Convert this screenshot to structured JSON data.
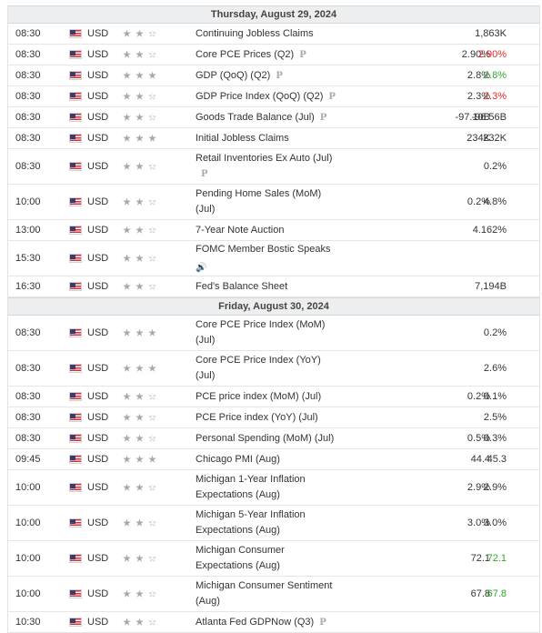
{
  "days": [
    {
      "header": "Thursday, August 29, 2024",
      "events": [
        {
          "time": "08:30",
          "currency": "USD",
          "importance": 2,
          "event": "Continuing Jobless Claims",
          "actual": "",
          "previous": "1,863K",
          "prev_color": "",
          "p": false,
          "speech": false,
          "tall": false
        },
        {
          "time": "08:30",
          "currency": "USD",
          "importance": 2,
          "event": "Core PCE Prices (Q2)",
          "actual": "2.90%",
          "previous": "2.90%",
          "prev_color": "red",
          "p": true,
          "speech": false,
          "tall": false
        },
        {
          "time": "08:30",
          "currency": "USD",
          "importance": 3,
          "event": "GDP (QoQ) (Q2)",
          "actual": "2.8%",
          "previous": "2.8%",
          "prev_color": "green",
          "p": true,
          "speech": false,
          "tall": false
        },
        {
          "time": "08:30",
          "currency": "USD",
          "importance": 2,
          "event": "GDP Price Index (QoQ) (Q2)",
          "actual": "2.3%",
          "previous": "2.3%",
          "prev_color": "red",
          "p": true,
          "speech": false,
          "tall": false
        },
        {
          "time": "08:30",
          "currency": "USD",
          "importance": 2,
          "event": "Goods Trade Balance (Jul)",
          "actual": "-97.10B",
          "previous": "-96.56B",
          "prev_color": "",
          "p": true,
          "speech": false,
          "tall": false
        },
        {
          "time": "08:30",
          "currency": "USD",
          "importance": 3,
          "event": "Initial Jobless Claims",
          "actual": "234K",
          "previous": "232K",
          "prev_color": "",
          "p": false,
          "speech": false,
          "tall": false
        },
        {
          "time": "08:30",
          "currency": "USD",
          "importance": 2,
          "event": "Retail Inventories Ex Auto (Jul)",
          "actual": "",
          "previous": "0.2%",
          "prev_color": "",
          "p": true,
          "speech": false,
          "tall": true
        },
        {
          "time": "10:00",
          "currency": "USD",
          "importance": 2,
          "event": "Pending Home Sales (MoM) (Jul)",
          "actual": "0.2%",
          "previous": "4.8%",
          "prev_color": "",
          "p": false,
          "speech": false,
          "tall": true
        },
        {
          "time": "13:00",
          "currency": "USD",
          "importance": 2,
          "event": "7-Year Note Auction",
          "actual": "",
          "previous": "4.162%",
          "prev_color": "",
          "p": false,
          "speech": false,
          "tall": false
        },
        {
          "time": "15:30",
          "currency": "USD",
          "importance": 2,
          "event": "FOMC Member Bostic Speaks",
          "actual": "",
          "previous": "",
          "prev_color": "",
          "p": false,
          "speech": true,
          "tall": true
        },
        {
          "time": "16:30",
          "currency": "USD",
          "importance": 2,
          "event": "Fed's Balance Sheet",
          "actual": "",
          "previous": "7,194B",
          "prev_color": "",
          "p": false,
          "speech": false,
          "tall": false
        }
      ]
    },
    {
      "header": "Friday, August 30, 2024",
      "events": [
        {
          "time": "08:30",
          "currency": "USD",
          "importance": 3,
          "event": "Core PCE Price Index (MoM) (Jul)",
          "actual": "",
          "previous": "0.2%",
          "prev_color": "",
          "p": false,
          "speech": false,
          "tall": true
        },
        {
          "time": "08:30",
          "currency": "USD",
          "importance": 3,
          "event": "Core PCE Price Index (YoY) (Jul)",
          "actual": "",
          "previous": "2.6%",
          "prev_color": "",
          "p": false,
          "speech": false,
          "tall": true
        },
        {
          "time": "08:30",
          "currency": "USD",
          "importance": 2,
          "event": "PCE price index (MoM) (Jul)",
          "actual": "0.2%",
          "previous": "0.1%",
          "prev_color": "",
          "p": false,
          "speech": false,
          "tall": false
        },
        {
          "time": "08:30",
          "currency": "USD",
          "importance": 2,
          "event": "PCE Price index (YoY) (Jul)",
          "actual": "",
          "previous": "2.5%",
          "prev_color": "",
          "p": false,
          "speech": false,
          "tall": false
        },
        {
          "time": "08:30",
          "currency": "USD",
          "importance": 2,
          "event": "Personal Spending (MoM) (Jul)",
          "actual": "0.5%",
          "previous": "0.3%",
          "prev_color": "",
          "p": false,
          "speech": false,
          "tall": false
        },
        {
          "time": "09:45",
          "currency": "USD",
          "importance": 3,
          "event": "Chicago PMI (Aug)",
          "actual": "44.4",
          "previous": "45.3",
          "prev_color": "",
          "p": false,
          "speech": false,
          "tall": false
        },
        {
          "time": "10:00",
          "currency": "USD",
          "importance": 2,
          "event": "Michigan 1-Year Inflation Expectations (Aug)",
          "actual": "2.9%",
          "previous": "2.9%",
          "prev_color": "",
          "p": false,
          "speech": false,
          "tall": true
        },
        {
          "time": "10:00",
          "currency": "USD",
          "importance": 2,
          "event": "Michigan 5-Year Inflation Expectations (Aug)",
          "actual": "3.0%",
          "previous": "3.0%",
          "prev_color": "",
          "p": false,
          "speech": false,
          "tall": true
        },
        {
          "time": "10:00",
          "currency": "USD",
          "importance": 2,
          "event": "Michigan Consumer Expectations (Aug)",
          "actual": "72.1",
          "previous": "72.1",
          "prev_color": "green",
          "p": false,
          "speech": false,
          "tall": true
        },
        {
          "time": "10:00",
          "currency": "USD",
          "importance": 2,
          "event": "Michigan Consumer Sentiment (Aug)",
          "actual": "67.8",
          "previous": "67.8",
          "prev_color": "green",
          "p": false,
          "speech": false,
          "tall": true
        },
        {
          "time": "10:30",
          "currency": "USD",
          "importance": 2,
          "event": "Atlanta Fed GDPNow (Q3)",
          "actual": "",
          "previous": "",
          "prev_color": "",
          "p": true,
          "speech": false,
          "tall": false
        }
      ]
    }
  ],
  "icons": {
    "flag": "us-flag-icon",
    "star": "star-icon",
    "p": "preliminary-icon",
    "speech": "speaker-icon"
  },
  "colors": {
    "red": "#e8262c",
    "green": "#32a532",
    "header_bg": "#eceef0"
  },
  "glyphs": {
    "p": "P",
    "speech": "🔊"
  }
}
